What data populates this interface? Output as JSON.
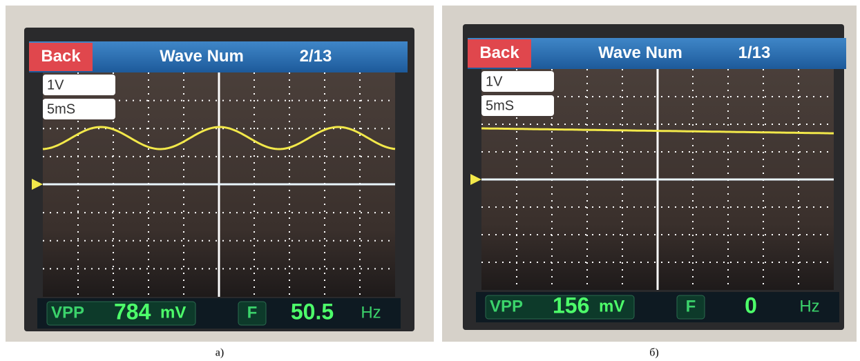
{
  "panels": [
    {
      "back": "Back",
      "title": "Wave Num",
      "page": "2/13",
      "volts": "1V",
      "time": "5mS",
      "vpp_label": "VPP",
      "vpp_value": "784",
      "vpp_unit": "mV",
      "f_label": "F",
      "f_value": "50.5",
      "f_unit": "Hz",
      "caption": "а)"
    },
    {
      "back": "Back",
      "title": "Wave Num",
      "page": "1/13",
      "volts": "1V",
      "time": "5mS",
      "vpp_label": "VPP",
      "vpp_value": "156",
      "vpp_unit": "mV",
      "f_label": "F",
      "f_value": "0",
      "f_unit": "Hz",
      "caption": "б)"
    }
  ]
}
